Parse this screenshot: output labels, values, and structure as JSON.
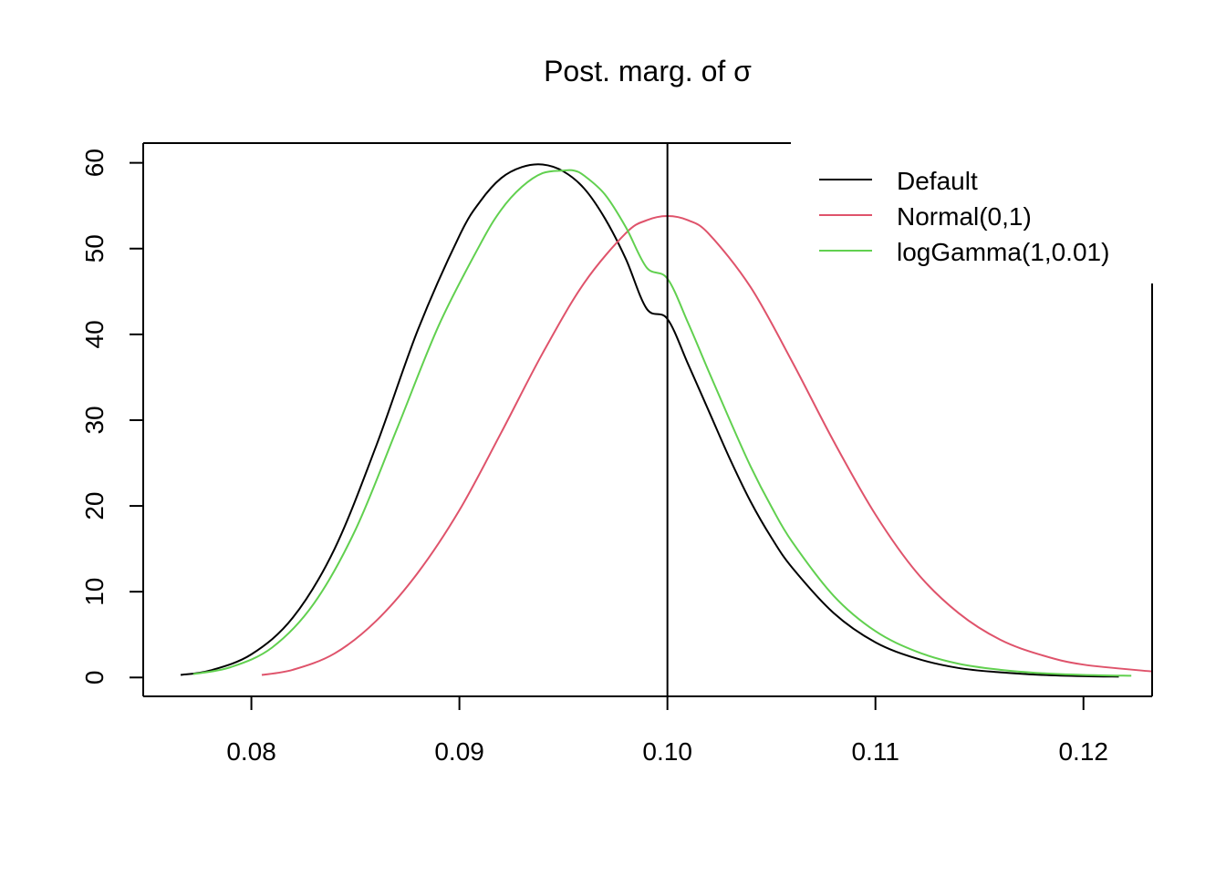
{
  "chart_data": {
    "type": "line",
    "title": "Post. marg. of σ",
    "xlabel": "",
    "ylabel": "",
    "xlim": [
      0.0748,
      0.1233
    ],
    "ylim": [
      -2.2,
      62.3
    ],
    "x_ticks": [
      0.08,
      0.09,
      0.1,
      0.11,
      0.12
    ],
    "x_tick_labels": [
      "0.08",
      "0.09",
      "0.10",
      "0.11",
      "0.12"
    ],
    "y_ticks": [
      0,
      10,
      20,
      30,
      40,
      50,
      60
    ],
    "y_tick_labels": [
      "0",
      "10",
      "20",
      "30",
      "40",
      "50",
      "60"
    ],
    "vline": 0.1,
    "grid": false,
    "legend_position": "top-right",
    "series": [
      {
        "name": "Default",
        "color": "#000000",
        "x": [
          0.0766,
          0.078,
          0.08,
          0.082,
          0.084,
          0.086,
          0.088,
          0.09,
          0.091,
          0.092,
          0.093,
          0.094,
          0.095,
          0.096,
          0.097,
          0.098,
          0.099,
          0.1,
          0.101,
          0.102,
          0.103,
          0.104,
          0.105,
          0.106,
          0.108,
          0.11,
          0.112,
          0.114,
          0.116,
          0.118,
          0.12,
          0.1217
        ],
        "y": [
          0.3,
          0.8,
          2.7,
          7.0,
          15.0,
          27.0,
          40.5,
          51.5,
          55.5,
          58.2,
          59.5,
          59.8,
          59.0,
          57.0,
          53.5,
          48.8,
          43.0,
          41.8,
          36.5,
          31.0,
          25.5,
          20.5,
          16.3,
          12.8,
          7.5,
          4.1,
          2.2,
          1.1,
          0.6,
          0.3,
          0.15,
          0.1
        ]
      },
      {
        "name": "Normal(0,1)",
        "color": "#DF536B",
        "x": [
          0.0805,
          0.082,
          0.084,
          0.086,
          0.088,
          0.09,
          0.092,
          0.094,
          0.096,
          0.098,
          0.099,
          0.1,
          0.101,
          0.102,
          0.104,
          0.106,
          0.108,
          0.11,
          0.112,
          0.114,
          0.116,
          0.118,
          0.12,
          0.1233
        ],
        "y": [
          0.3,
          0.9,
          2.8,
          6.6,
          12.2,
          19.5,
          28.5,
          37.8,
          46.0,
          51.8,
          53.3,
          53.8,
          53.3,
          51.7,
          45.5,
          36.8,
          27.5,
          19.0,
          12.2,
          7.5,
          4.4,
          2.6,
          1.5,
          0.7
        ]
      },
      {
        "name": "logGamma(1,0.01)",
        "color": "#61D04F",
        "x": [
          0.0772,
          0.079,
          0.081,
          0.083,
          0.085,
          0.087,
          0.089,
          0.091,
          0.092,
          0.093,
          0.094,
          0.095,
          0.0955,
          0.096,
          0.097,
          0.098,
          0.099,
          0.1,
          0.101,
          0.102,
          0.103,
          0.104,
          0.105,
          0.106,
          0.108,
          0.11,
          0.112,
          0.114,
          0.116,
          0.118,
          0.12,
          0.1223
        ],
        "y": [
          0.4,
          1.2,
          3.5,
          8.6,
          17.2,
          29.0,
          41.0,
          50.5,
          54.5,
          57.2,
          58.8,
          59.1,
          59.1,
          58.5,
          56.3,
          52.5,
          47.8,
          46.5,
          41.3,
          35.6,
          30.0,
          24.6,
          19.9,
          15.8,
          9.5,
          5.4,
          3.0,
          1.6,
          0.9,
          0.5,
          0.3,
          0.2
        ]
      }
    ]
  }
}
